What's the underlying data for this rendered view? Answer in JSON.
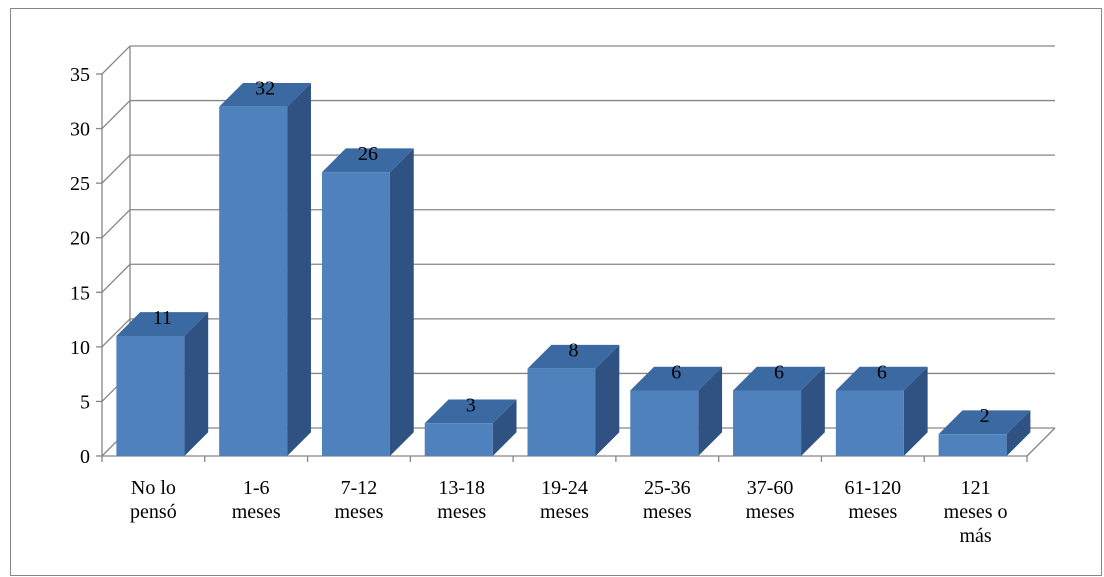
{
  "chart_data": {
    "type": "bar",
    "bar_style": "3d-column",
    "categories": [
      [
        "No lo",
        "pensó"
      ],
      [
        "1-6",
        "meses"
      ],
      [
        "7-12",
        "meses"
      ],
      [
        "13-18",
        "meses"
      ],
      [
        "19-24",
        "meses"
      ],
      [
        "25-36",
        "meses"
      ],
      [
        "37-60",
        "meses"
      ],
      [
        "61-120",
        "meses"
      ],
      [
        "121",
        "meses o",
        "más"
      ]
    ],
    "values": [
      11,
      32,
      26,
      3,
      8,
      6,
      6,
      6,
      2
    ],
    "data_labels": [
      "11",
      "32",
      "26",
      "3",
      "8",
      "6",
      "6",
      "6",
      "2"
    ],
    "title": "",
    "xlabel": "",
    "ylabel": "",
    "ylim": [
      0,
      35
    ],
    "yticks": [
      0,
      5,
      10,
      15,
      20,
      25,
      30,
      35
    ],
    "grid": true,
    "legend": "none",
    "colors": {
      "bar_front": "#4f81bd",
      "bar_top": "#3b6aa3",
      "bar_side": "#2f5282",
      "grid": "#868686",
      "frame": "#868686"
    }
  }
}
